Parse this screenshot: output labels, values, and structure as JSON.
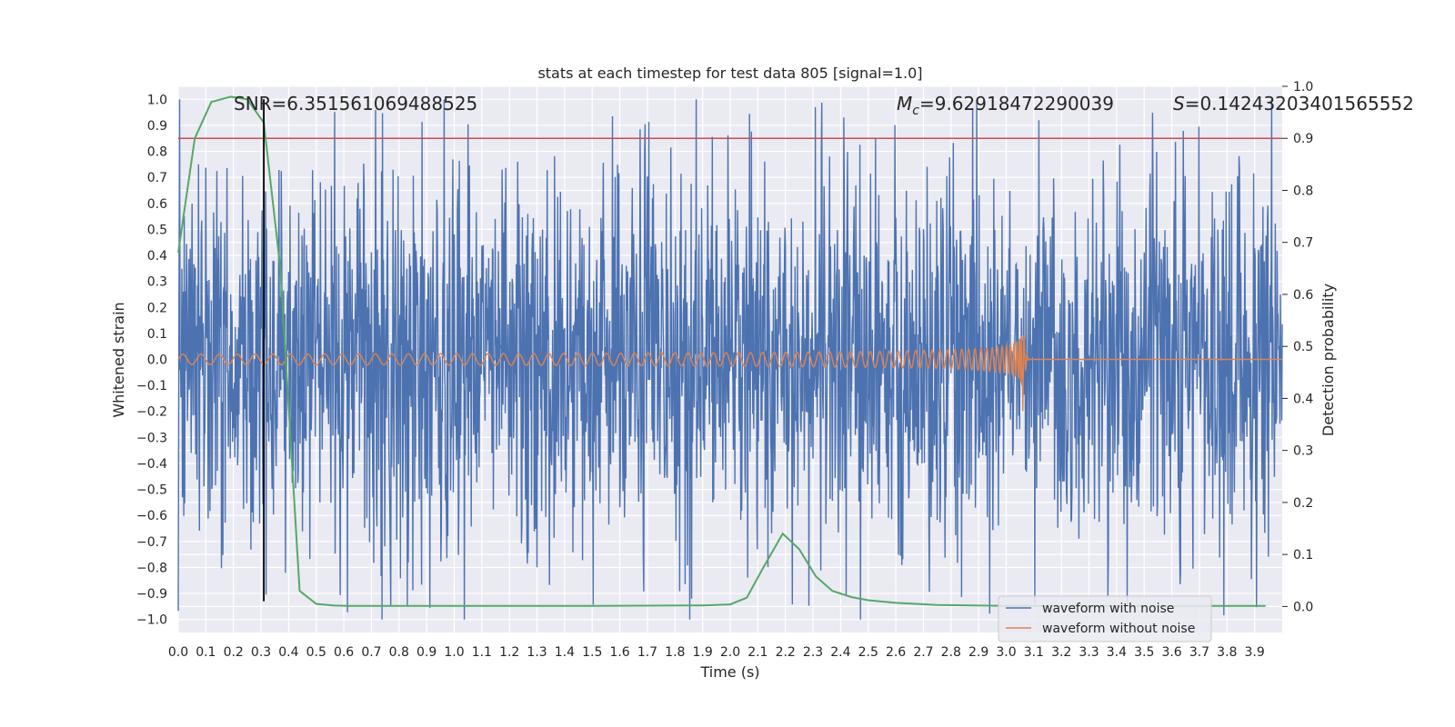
{
  "chart_data": {
    "type": "line",
    "title": "stats at each timestep for test data 805 [signal=1.0]",
    "xlabel": "Time (s)",
    "ylabel": "Whitened strain",
    "y2label": "Detection probability",
    "xlim": [
      0.0,
      4.0
    ],
    "ylim": [
      -1.05,
      1.05
    ],
    "y2lim": [
      -0.05,
      1.0
    ],
    "x_ticks": [
      "0.0",
      "0.1",
      "0.2",
      "0.3",
      "0.4",
      "0.5",
      "0.6",
      "0.7",
      "0.8",
      "0.9",
      "1.0",
      "1.1",
      "1.2",
      "1.3",
      "1.4",
      "1.5",
      "1.6",
      "1.7",
      "1.8",
      "1.9",
      "2.0",
      "2.1",
      "2.2",
      "2.3",
      "2.4",
      "2.5",
      "2.6",
      "2.7",
      "2.8",
      "2.9",
      "3.0",
      "3.1",
      "3.2",
      "3.3",
      "3.4",
      "3.5",
      "3.6",
      "3.7",
      "3.8",
      "3.9"
    ],
    "y_ticks": [
      "1.0",
      "0.9",
      "0.8",
      "0.7",
      "0.6",
      "0.5",
      "0.4",
      "0.3",
      "0.2",
      "0.1",
      "0.0",
      "−0.1",
      "−0.2",
      "−0.3",
      "−0.4",
      "−0.5",
      "−0.6",
      "−0.7",
      "−0.8",
      "−0.9",
      "−1.0"
    ],
    "y2_ticks": [
      "1.0",
      "0.9",
      "0.8",
      "0.7",
      "0.6",
      "0.5",
      "0.4",
      "0.3",
      "0.2",
      "0.1",
      "0.0"
    ],
    "annotations": {
      "snr": "SNR=6.351561069488525",
      "mc_symbol": "M",
      "mc_sub": "c",
      "mc_value": "=9.62918472290039",
      "s_symbol": "S",
      "s_value": "=0.14243203401565552"
    },
    "legend": {
      "location": "lower right",
      "entries": [
        {
          "label": "waveform with noise",
          "color": "#4c72b0"
        },
        {
          "label": "waveform without noise",
          "color": "#dd8452"
        }
      ]
    },
    "series": [
      {
        "name": "waveform with noise",
        "axis": "left",
        "color": "#4c72b0",
        "kind": "noise",
        "amplitude_typical": 0.35,
        "amplitude_max": 1.0
      },
      {
        "name": "waveform without noise",
        "axis": "left",
        "color": "#dd8452",
        "kind": "chirp",
        "amplitude_start": 0.02,
        "amplitude_peak": 0.22,
        "merger_time": 3.06
      },
      {
        "name": "detection probability",
        "axis": "right",
        "color": "#55a868",
        "x": [
          0.0,
          0.06,
          0.12,
          0.19,
          0.25,
          0.31,
          0.37,
          0.44,
          0.5,
          0.56,
          0.62,
          0.75,
          1.0,
          1.5,
          1.9,
          2.0,
          2.06,
          2.12,
          2.19,
          2.25,
          2.31,
          2.37,
          2.44,
          2.5,
          2.6,
          2.75,
          3.0,
          3.5,
          3.94
        ],
        "y": [
          0.68,
          0.9,
          0.97,
          0.98,
          0.975,
          0.93,
          0.65,
          0.03,
          0.005,
          0.002,
          0.001,
          0.001,
          0.001,
          0.001,
          0.002,
          0.004,
          0.017,
          0.075,
          0.14,
          0.11,
          0.058,
          0.03,
          0.018,
          0.012,
          0.007,
          0.003,
          0.001,
          0.001,
          0.001
        ]
      }
    ],
    "threshold_line": {
      "axis": "right",
      "value": 0.9,
      "color": "#c44e52"
    },
    "marker_line": {
      "x": 0.31,
      "y_from": -0.93,
      "y_to": 1.0,
      "color": "#000000"
    }
  }
}
